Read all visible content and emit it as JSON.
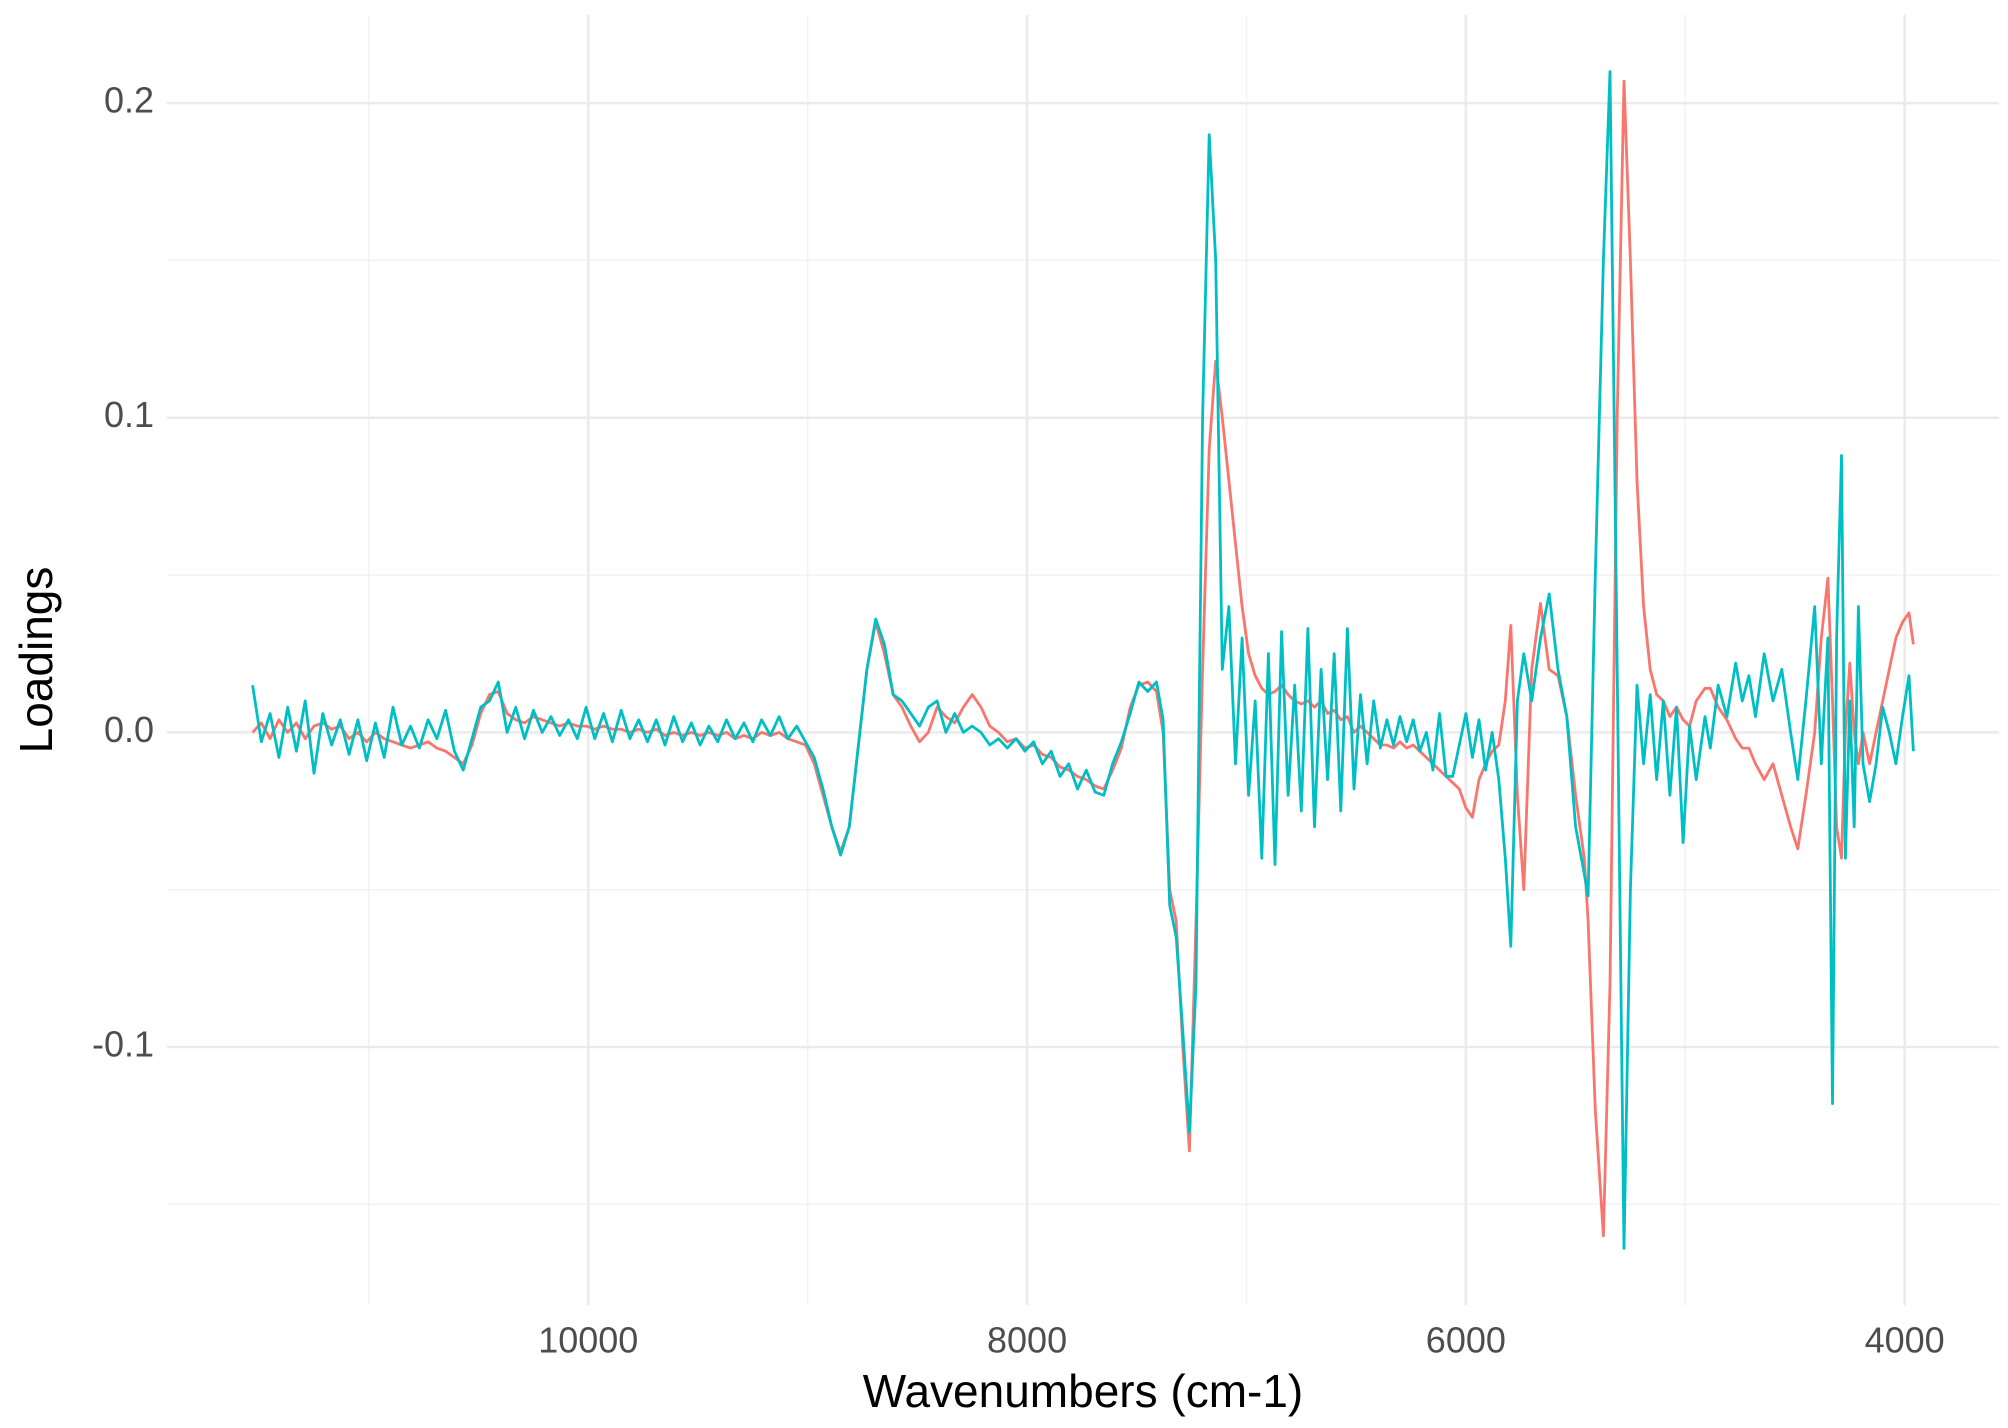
{
  "chart_data": {
    "type": "line",
    "xlabel": "Wavenumbers (cm-1)",
    "ylabel": "Loadings",
    "xlim": [
      11920,
      3570
    ],
    "ylim": [
      -0.182,
      0.228
    ],
    "reverse_x": true,
    "xticks": [
      10000,
      8000,
      6000,
      4000
    ],
    "yticks": [
      -0.1,
      {
        "value": 0,
        "label": "0.0"
      },
      0.1,
      0.2
    ],
    "xminor": [
      11000,
      9000,
      7000,
      5000
    ],
    "yminor": [
      -0.15,
      -0.05,
      0.05,
      0.15
    ],
    "grid": true,
    "x": [
      11530,
      11490,
      11450,
      11410,
      11370,
      11330,
      11290,
      11250,
      11210,
      11170,
      11130,
      11090,
      11050,
      11010,
      10970,
      10930,
      10890,
      10850,
      10810,
      10770,
      10730,
      10690,
      10650,
      10610,
      10570,
      10530,
      10490,
      10450,
      10410,
      10370,
      10330,
      10290,
      10250,
      10210,
      10170,
      10130,
      10090,
      10050,
      10010,
      9970,
      9930,
      9890,
      9850,
      9810,
      9770,
      9730,
      9690,
      9650,
      9610,
      9570,
      9530,
      9490,
      9450,
      9410,
      9370,
      9330,
      9290,
      9250,
      9210,
      9170,
      9130,
      9090,
      9050,
      9010,
      8970,
      8930,
      8890,
      8850,
      8810,
      8770,
      8730,
      8690,
      8650,
      8610,
      8570,
      8530,
      8490,
      8450,
      8410,
      8370,
      8330,
      8290,
      8250,
      8210,
      8170,
      8130,
      8090,
      8050,
      8010,
      7970,
      7930,
      7890,
      7850,
      7810,
      7770,
      7730,
      7690,
      7650,
      7610,
      7570,
      7530,
      7490,
      7450,
      7410,
      7380,
      7350,
      7320,
      7290,
      7260,
      7230,
      7200,
      7170,
      7140,
      7110,
      7080,
      7050,
      7020,
      6990,
      6960,
      6930,
      6900,
      6870,
      6840,
      6810,
      6780,
      6750,
      6720,
      6690,
      6660,
      6630,
      6600,
      6570,
      6540,
      6510,
      6480,
      6450,
      6420,
      6390,
      6360,
      6330,
      6300,
      6270,
      6240,
      6210,
      6180,
      6150,
      6120,
      6090,
      6060,
      6030,
      6000,
      5970,
      5940,
      5910,
      5880,
      5850,
      5820,
      5795,
      5765,
      5736,
      5700,
      5660,
      5620,
      5580,
      5540,
      5500,
      5460,
      5443,
      5410,
      5373,
      5343,
      5310,
      5279,
      5250,
      5220,
      5190,
      5160,
      5130,
      5100,
      5070,
      5040,
      5010,
      4980,
      4950,
      4910,
      4886,
      4850,
      4810,
      4770,
      4740,
      4710,
      4680,
      4640,
      4600,
      4560,
      4520,
      4487,
      4450,
      4410,
      4380,
      4350,
      4329,
      4310,
      4288,
      4270,
      4250,
      4230,
      4211,
      4190,
      4160,
      4130,
      4100,
      4070,
      4040,
      4010,
      3980,
      3960
    ],
    "series": [
      {
        "color": "#F8766D",
        "values": [
          0.0,
          0.003,
          -0.002,
          0.004,
          0.0,
          0.003,
          -0.002,
          0.002,
          0.003,
          0.001,
          0.002,
          -0.002,
          0.0,
          -0.003,
          0.0,
          -0.002,
          -0.003,
          -0.004,
          -0.005,
          -0.004,
          -0.003,
          -0.005,
          -0.006,
          -0.008,
          -0.01,
          -0.004,
          0.006,
          0.012,
          0.013,
          0.006,
          0.004,
          0.003,
          0.005,
          0.004,
          0.003,
          0.002,
          0.003,
          0.002,
          0.002,
          0.001,
          0.002,
          0.001,
          0.001,
          0.0,
          0.001,
          0.0,
          0.001,
          -0.001,
          0.0,
          -0.001,
          0.0,
          -0.001,
          0.0,
          -0.001,
          0.0,
          -0.002,
          -0.001,
          -0.002,
          0.0,
          -0.001,
          0.0,
          -0.002,
          -0.003,
          -0.004,
          -0.01,
          -0.02,
          -0.03,
          -0.038,
          -0.03,
          -0.005,
          0.02,
          0.035,
          0.025,
          0.012,
          0.008,
          0.002,
          -0.003,
          0.0,
          0.008,
          0.005,
          0.003,
          0.008,
          0.012,
          0.008,
          0.002,
          0.0,
          -0.003,
          -0.002,
          -0.005,
          -0.004,
          -0.007,
          -0.008,
          -0.011,
          -0.012,
          -0.014,
          -0.015,
          -0.017,
          -0.018,
          -0.012,
          -0.005,
          0.008,
          0.015,
          0.016,
          0.013,
          0.0,
          -0.05,
          -0.06,
          -0.1,
          -0.133,
          -0.06,
          0.02,
          0.09,
          0.118,
          0.1,
          0.08,
          0.06,
          0.04,
          0.025,
          0.018,
          0.014,
          0.012,
          0.013,
          0.015,
          0.012,
          0.01,
          0.009,
          0.01,
          0.008,
          0.01,
          0.006,
          0.007,
          0.004,
          0.005,
          0.0,
          0.002,
          0.0,
          -0.002,
          -0.004,
          -0.004,
          -0.005,
          -0.003,
          -0.005,
          -0.004,
          -0.006,
          -0.008,
          -0.01,
          -0.012,
          -0.014,
          -0.016,
          -0.018,
          -0.024,
          -0.027,
          -0.015,
          -0.01,
          -0.006,
          -0.004,
          0.01,
          0.034,
          -0.02,
          -0.05,
          0.02,
          0.041,
          0.02,
          0.018,
          0.005,
          -0.02,
          -0.04,
          -0.06,
          -0.12,
          -0.16,
          -0.08,
          0.1,
          0.207,
          0.15,
          0.08,
          0.04,
          0.02,
          0.012,
          0.01,
          0.005,
          0.008,
          0.004,
          0.002,
          0.01,
          0.014,
          0.014,
          0.008,
          0.004,
          -0.002,
          -0.005,
          -0.005,
          -0.01,
          -0.015,
          -0.01,
          -0.02,
          -0.03,
          -0.037,
          -0.02,
          0.0,
          0.03,
          0.049,
          0.01,
          -0.03,
          -0.04,
          0.0,
          0.022,
          0.0,
          -0.01,
          0.0,
          -0.01,
          0.0,
          0.01,
          0.02,
          0.03,
          0.035,
          0.038,
          0.028
        ]
      },
      {
        "color": "#00BFC4",
        "values": [
          0.015,
          -0.003,
          0.006,
          -0.008,
          0.008,
          -0.006,
          0.01,
          -0.013,
          0.006,
          -0.004,
          0.004,
          -0.007,
          0.004,
          -0.009,
          0.003,
          -0.008,
          0.008,
          -0.004,
          0.002,
          -0.005,
          0.004,
          -0.002,
          0.007,
          -0.006,
          -0.012,
          -0.002,
          0.008,
          0.01,
          0.016,
          0.0,
          0.008,
          -0.002,
          0.007,
          0.0,
          0.005,
          -0.001,
          0.004,
          -0.002,
          0.008,
          -0.002,
          0.006,
          -0.003,
          0.007,
          -0.002,
          0.004,
          -0.003,
          0.004,
          -0.004,
          0.005,
          -0.003,
          0.003,
          -0.004,
          0.002,
          -0.003,
          0.004,
          -0.002,
          0.003,
          -0.003,
          0.004,
          -0.001,
          0.005,
          -0.002,
          0.002,
          -0.003,
          -0.008,
          -0.018,
          -0.03,
          -0.039,
          -0.03,
          -0.005,
          0.02,
          0.036,
          0.028,
          0.012,
          0.01,
          0.006,
          0.002,
          0.008,
          0.01,
          0.0,
          0.006,
          0.0,
          0.002,
          0.0,
          -0.004,
          -0.002,
          -0.005,
          -0.002,
          -0.006,
          -0.003,
          -0.01,
          -0.006,
          -0.014,
          -0.01,
          -0.018,
          -0.012,
          -0.019,
          -0.02,
          -0.01,
          -0.003,
          0.006,
          0.016,
          0.013,
          0.016,
          0.004,
          -0.055,
          -0.065,
          -0.095,
          -0.127,
          -0.08,
          0.1,
          0.19,
          0.15,
          0.02,
          0.04,
          -0.01,
          0.03,
          -0.02,
          0.01,
          -0.04,
          0.025,
          -0.042,
          0.032,
          -0.02,
          0.015,
          -0.025,
          0.033,
          -0.03,
          0.02,
          -0.015,
          0.025,
          -0.025,
          0.033,
          -0.018,
          0.012,
          -0.01,
          0.01,
          -0.005,
          0.004,
          -0.004,
          0.005,
          -0.003,
          0.004,
          -0.006,
          0.0,
          -0.012,
          0.006,
          -0.014,
          -0.014,
          -0.004,
          0.006,
          -0.008,
          0.004,
          -0.012,
          0.0,
          -0.015,
          -0.04,
          -0.068,
          0.01,
          0.025,
          0.01,
          0.03,
          0.044,
          0.02,
          0.005,
          -0.03,
          -0.045,
          -0.052,
          0.05,
          0.15,
          0.21,
          0.02,
          -0.164,
          -0.05,
          0.015,
          -0.01,
          0.012,
          -0.015,
          0.01,
          -0.02,
          0.008,
          -0.035,
          0.002,
          -0.015,
          0.005,
          -0.005,
          0.015,
          0.005,
          0.022,
          0.01,
          0.018,
          0.005,
          0.025,
          0.01,
          0.02,
          0.0,
          -0.015,
          0.01,
          0.04,
          -0.01,
          0.03,
          -0.118,
          0.03,
          0.088,
          -0.04,
          0.01,
          -0.03,
          0.04,
          -0.01,
          -0.022,
          -0.01,
          0.008,
          0.0,
          -0.01,
          0.005,
          0.018,
          -0.006
        ]
      }
    ]
  }
}
